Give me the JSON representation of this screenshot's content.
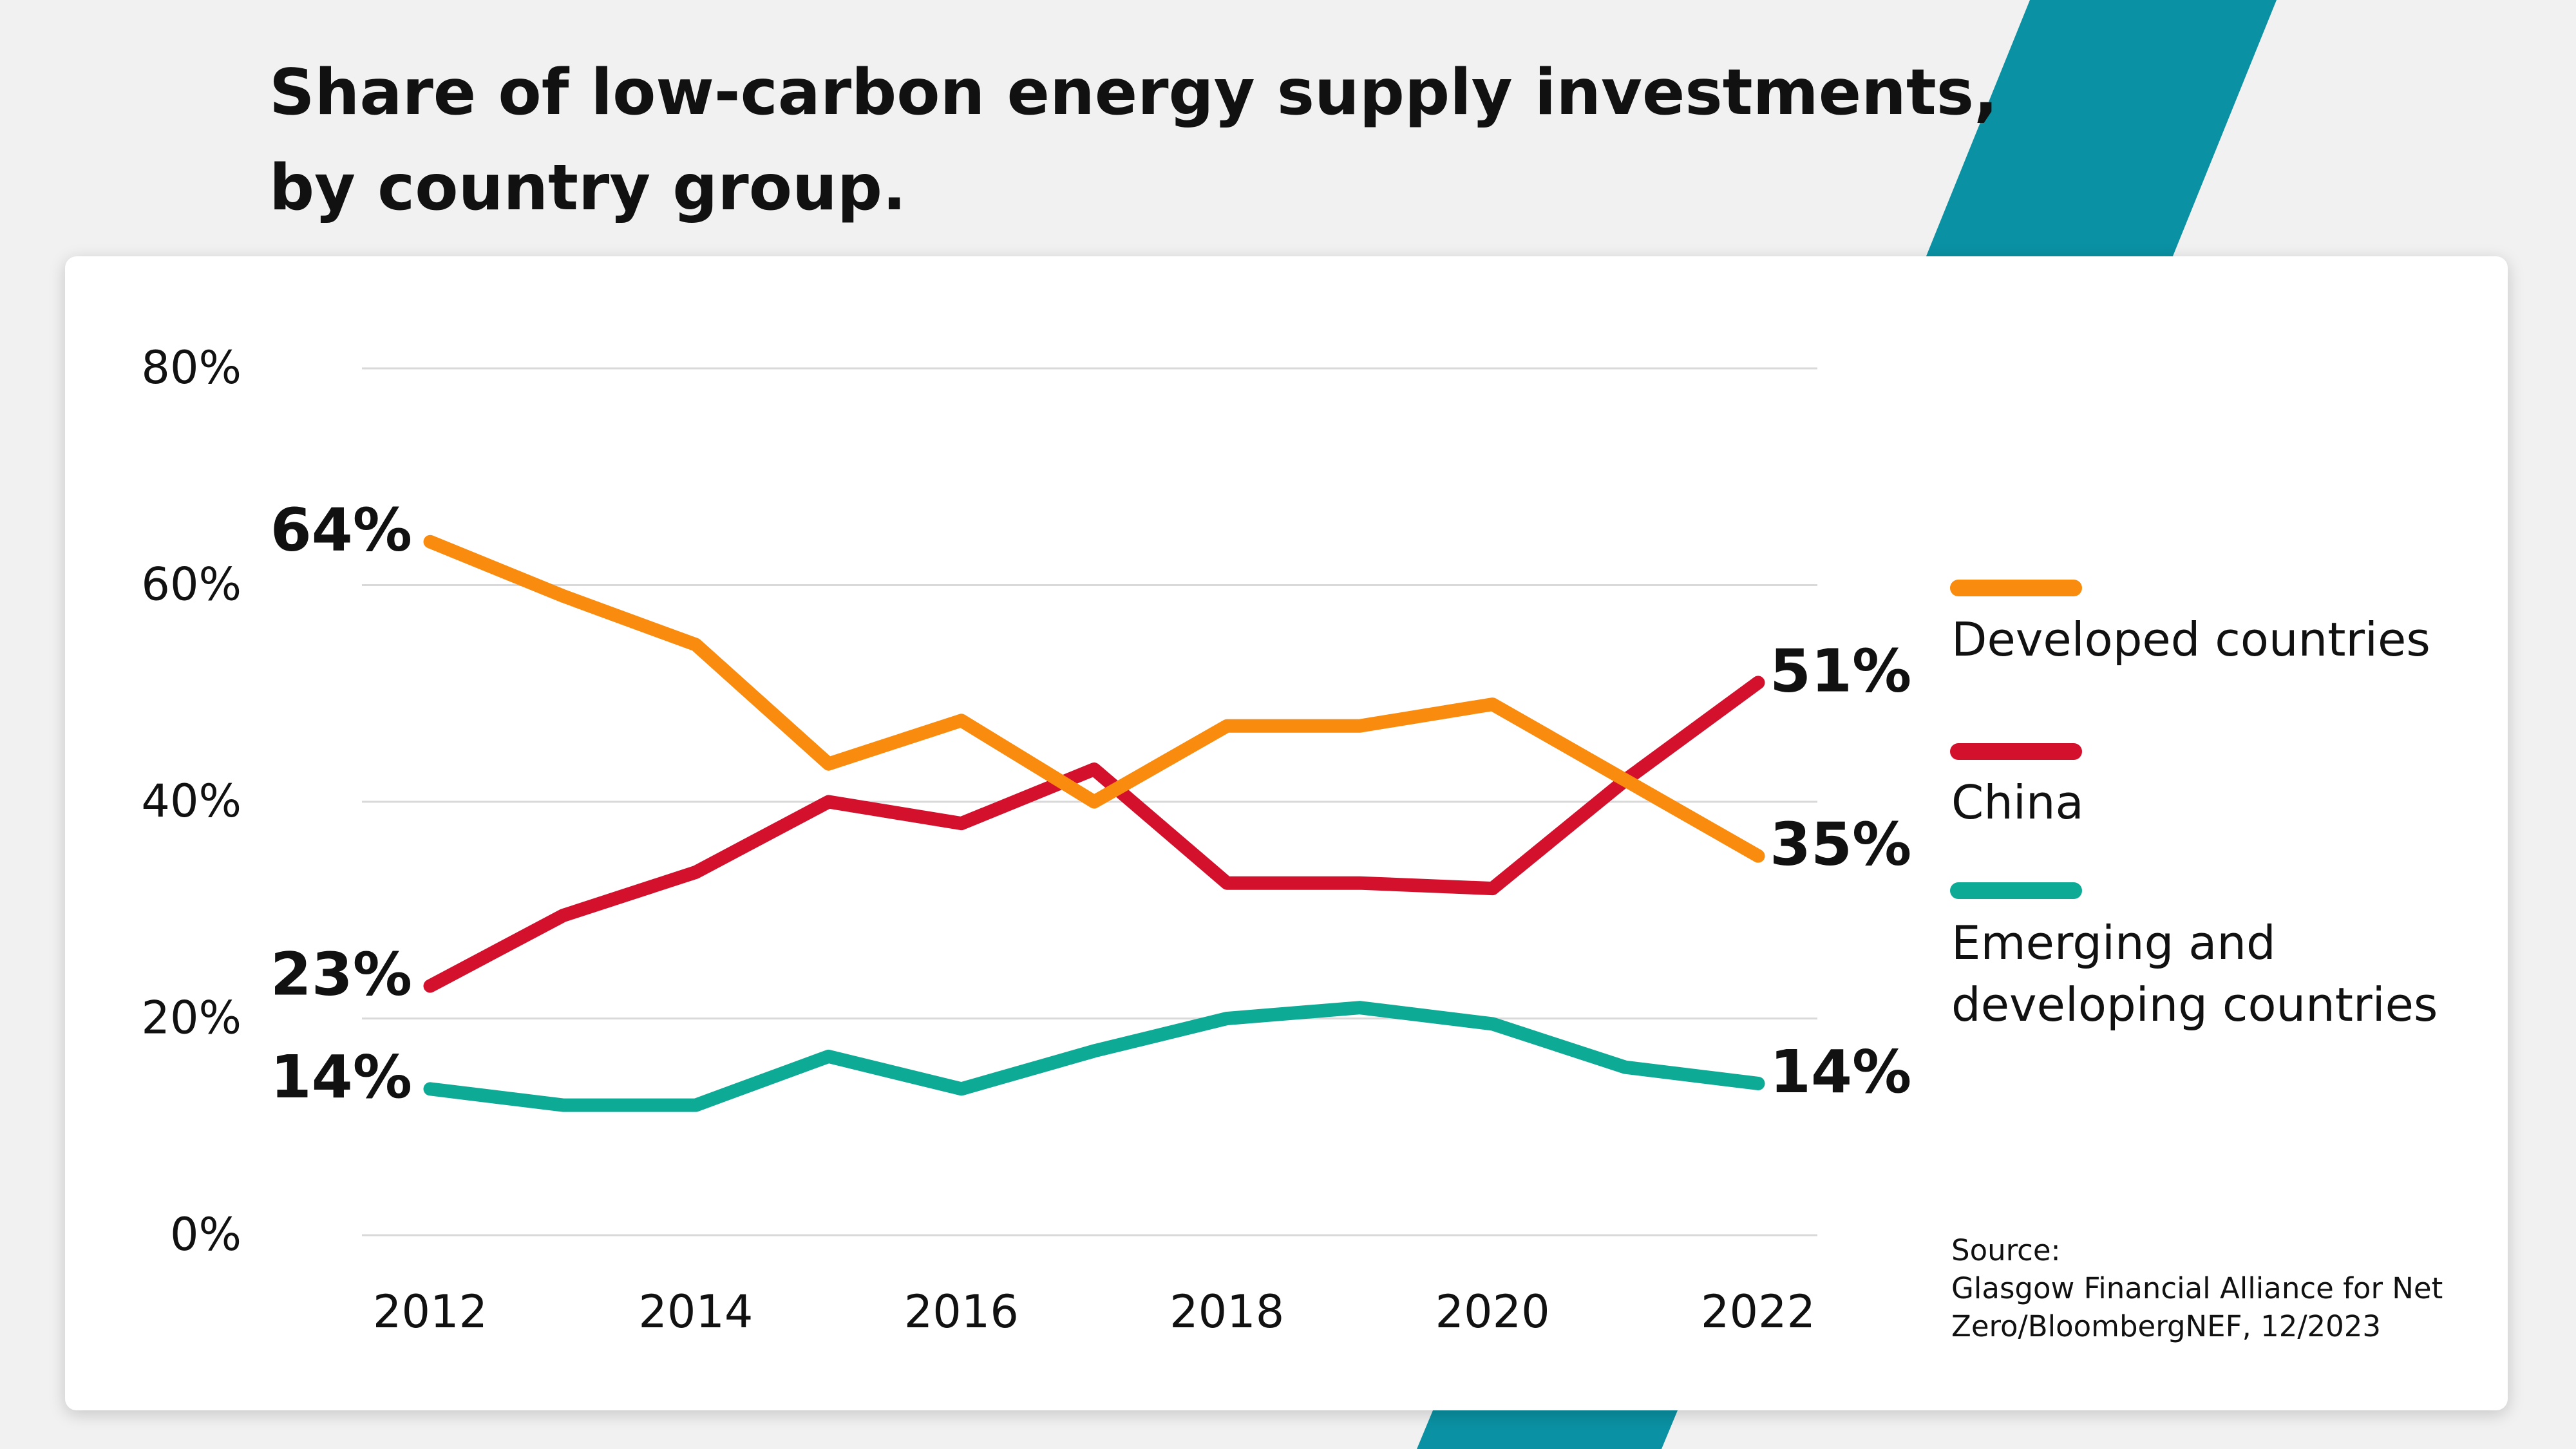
{
  "title": {
    "line1": "Share of low-carbon energy supply investments,",
    "line2": "by country group."
  },
  "colors": {
    "background": "#f1f1f1",
    "card": "#ffffff",
    "accent_stripe": "#0a91a3",
    "developed": "#f98c0e",
    "china": "#d3112d",
    "emerging": "#0daa96",
    "grid": "#d9d9d9"
  },
  "legend": [
    {
      "label": "Developed countries",
      "color": "#f98c0e"
    },
    {
      "label": "China",
      "color": "#d3112d"
    },
    {
      "label": "Emerging and developing countries",
      "color": "#0daa96"
    }
  ],
  "source": {
    "line1": "Source:",
    "line2": "Glasgow Financial Alliance for Net",
    "line3": "Zero/BloombergNEF, 12/2023"
  },
  "chart_data": {
    "type": "line",
    "x": [
      2012,
      2013,
      2014,
      2015,
      2016,
      2017,
      2018,
      2019,
      2020,
      2021,
      2022
    ],
    "xticks": [
      "2012",
      "2014",
      "2016",
      "2018",
      "2020",
      "2022"
    ],
    "yticks": [
      "0%",
      "20%",
      "40%",
      "60%",
      "80%"
    ],
    "ylim": [
      0,
      80
    ],
    "grid": true,
    "legend_position": "right",
    "series": [
      {
        "name": "Developed countries",
        "color": "#f98c0e",
        "values": [
          64,
          59,
          54.5,
          43.5,
          47.5,
          40,
          47,
          47,
          49,
          42,
          35
        ],
        "start_label": "64%",
        "end_label": "35%"
      },
      {
        "name": "China",
        "color": "#d3112d",
        "values": [
          23,
          29.5,
          33.5,
          40,
          38,
          43,
          32.5,
          32.5,
          32,
          42,
          51
        ],
        "start_label": "23%",
        "end_label": "51%"
      },
      {
        "name": "Emerging and developing countries",
        "color": "#0daa96",
        "values": [
          13.5,
          12,
          12,
          16.5,
          13.5,
          17,
          20,
          21,
          19.5,
          15.5,
          14
        ],
        "start_label": "14%",
        "end_label": "14%"
      }
    ]
  }
}
